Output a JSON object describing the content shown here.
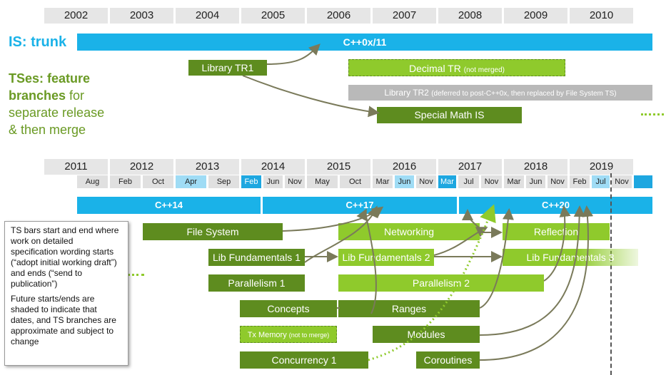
{
  "years_top": [
    "2002",
    "2003",
    "2004",
    "2005",
    "2006",
    "2007",
    "2008",
    "2009",
    "2010"
  ],
  "years_bottom": [
    "2011",
    "2012",
    "2013",
    "2014",
    "2015",
    "2016",
    "2017",
    "2018",
    "2019"
  ],
  "months": [
    "Aug",
    "Feb",
    "Oct",
    "Apr",
    "Sep",
    "Feb",
    "Jun",
    "Nov",
    "May",
    "Oct",
    "Mar",
    "Jun",
    "Nov",
    "Mar",
    "Jul",
    "Nov",
    "Mar",
    "Jun",
    "Nov",
    "Feb",
    "Jul",
    "Nov"
  ],
  "is_label": "IS: trunk",
  "ts_heading": {
    "bold": "TSes: feature branches",
    "rest1": " for",
    "rest2": "separate release",
    "rest3": "& then merge"
  },
  "top_bars": {
    "cpp0x": "C++0x/11",
    "tr1": "Library TR1",
    "decimal": "Decimal TR",
    "decimal_note": "(not merged)",
    "tr2": "Library TR2",
    "tr2_note": "(deferred to post-C++0x, then replaced by File System TS)",
    "special_math": "Special Math IS"
  },
  "is_bottom": {
    "cpp14": "C++14",
    "cpp17": "C++17",
    "cpp20": "C++20"
  },
  "ts_bars": {
    "filesystem": "File System",
    "networking": "Networking",
    "reflection": "Reflection",
    "libfund1": "Lib Fundamentals 1",
    "libfund2": "Lib Fundamentals 2",
    "libfund3": "Lib Fundamentals 3",
    "parallelism1": "Parallelism 1",
    "parallelism2": "Parallelism 2",
    "concepts": "Concepts",
    "ranges": "Ranges",
    "txmemory": "Tx Memory",
    "txmemory_note": "(not to merge)",
    "modules": "Modules",
    "concurrency1": "Concurrency 1",
    "coroutines": "Coroutines"
  },
  "note": {
    "p1": "TS bars start and end where work on detailed specification wording starts (“adopt initial working draft”) and ends (“send to publication”)",
    "p2": "Future starts/ends are shaded to indicate that dates, and TS branches are approximate and subject to change"
  },
  "colors": {
    "is_blue": "#1ab2e8",
    "ts_dark": "#5e8c1f",
    "ts_light": "#8fca2c",
    "gray": "#b9b9b9"
  }
}
